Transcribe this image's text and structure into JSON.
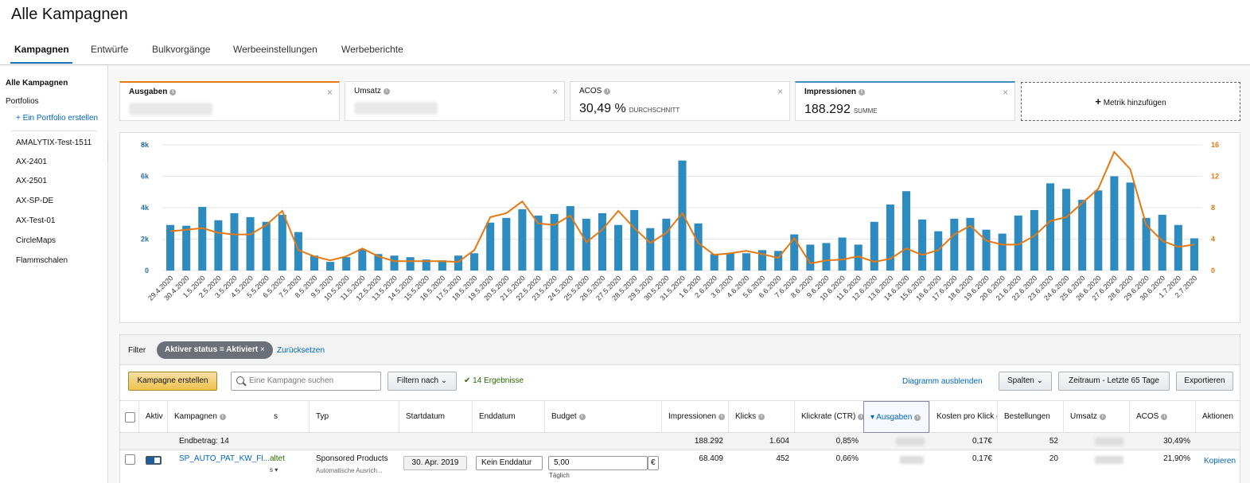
{
  "page_title": "Alle Kampagnen",
  "tabs": [
    "Kampagnen",
    "Entwürfe",
    "Bulkvorgänge",
    "Werbeeinstellungen",
    "Werbeberichte"
  ],
  "sidebar": {
    "heading": "Alle Kampagnen",
    "portfolios_label": "Portfolios",
    "create_portfolio": "+ Ein Portfolio erstellen",
    "items": [
      "AMALYTIX-Test-1511",
      "AX-2401",
      "AX-2501",
      "AX-SP-DE",
      "AX-Test-01",
      "CircleMaps",
      "Flammschalen"
    ]
  },
  "metrics": {
    "tile1_label": "Ausgaben",
    "tile2_label": "Umsatz",
    "tile3_label": "ACOS",
    "tile3_value": "30,49 %",
    "tile3_sub": "DURCHSCHNITT",
    "tile4_label": "Impressionen",
    "tile4_value": "188.292",
    "tile4_sub": "SUMME",
    "add_metric": "Metrik hinzufügen"
  },
  "colors": {
    "bars": "#2e8bc0",
    "line": "#e47911",
    "accent_blue": "#146eb4"
  },
  "chart_data": {
    "type": "bar",
    "categories": [
      "29.4.2020",
      "30.4.2020",
      "1.5.2020",
      "2.5.2020",
      "3.5.2020",
      "4.5.2020",
      "5.5.2020",
      "6.5.2020",
      "7.5.2020",
      "8.5.2020",
      "9.5.2020",
      "10.5.2020",
      "11.5.2020",
      "12.5.2020",
      "13.5.2020",
      "14.5.2020",
      "15.5.2020",
      "16.5.2020",
      "17.5.2020",
      "18.5.2020",
      "19.5.2020",
      "20.5.2020",
      "21.5.2020",
      "22.5.2020",
      "23.5.2020",
      "24.5.2020",
      "25.5.2020",
      "26.5.2020",
      "27.5.2020",
      "28.5.2020",
      "29.5.2020",
      "30.5.2020",
      "31.5.2020",
      "1.6.2020",
      "2.6.2020",
      "3.6.2020",
      "4.6.2020",
      "5.6.2020",
      "6.6.2020",
      "7.6.2020",
      "8.6.2020",
      "9.6.2020",
      "10.6.2020",
      "11.6.2020",
      "12.6.2020",
      "13.6.2020",
      "14.6.2020",
      "15.6.2020",
      "16.6.2020",
      "17.6.2020",
      "18.6.2020",
      "19.6.2020",
      "20.6.2020",
      "21.6.2020",
      "22.6.2020",
      "23.6.2020",
      "24.6.2020",
      "25.6.2020",
      "26.6.2020",
      "27.6.2020",
      "28.6.2020",
      "29.6.2020",
      "30.6.2020",
      "1.7.2020",
      "2.7.2020"
    ],
    "series": [
      {
        "name": "Impressionen",
        "axis": "left",
        "type": "bar",
        "values": [
          2900,
          2850,
          4050,
          3200,
          3650,
          3400,
          3100,
          3550,
          2450,
          950,
          550,
          850,
          1350,
          1050,
          950,
          850,
          700,
          650,
          950,
          1100,
          3050,
          3350,
          3900,
          3500,
          3600,
          4100,
          3300,
          3650,
          2900,
          3850,
          2700,
          3300,
          7000,
          3000,
          1050,
          1100,
          1100,
          1300,
          1250,
          2300,
          1650,
          1750,
          2100,
          1650,
          3100,
          4200,
          5050,
          3250,
          2500,
          3300,
          3350,
          2600,
          2350,
          3500,
          3850,
          5550,
          5200,
          4500,
          5100,
          6000,
          5600,
          3350,
          3550,
          2900,
          2050
        ]
      },
      {
        "name": "ACOS",
        "axis": "right",
        "type": "line",
        "values": [
          5,
          5.2,
          5.4,
          4.8,
          4.6,
          4.6,
          5.8,
          7.6,
          2.6,
          1.8,
          1.3,
          1.8,
          2.8,
          1.8,
          1.2,
          1.2,
          1.2,
          1.2,
          1.1,
          2.6,
          6.8,
          7.3,
          8.8,
          6.0,
          5.8,
          7.0,
          3.6,
          5.2,
          7.6,
          5.4,
          3.5,
          4.8,
          7.3,
          3.5,
          2.0,
          2.2,
          2.5,
          2.1,
          1.6,
          4.1,
          0.9,
          1.3,
          1.4,
          1.8,
          1.1,
          1.5,
          2.8,
          2.0,
          2.6,
          4.6,
          5.7,
          3.8,
          3.3,
          3.3,
          4.4,
          6.3,
          6.8,
          8.6,
          10.4,
          15.1,
          12.9,
          5.8,
          3.8,
          3.0,
          3.3
        ]
      }
    ],
    "left_axis_ticks": [
      "0",
      "2k",
      "4k",
      "6k",
      "8k"
    ],
    "right_axis_ticks": [
      "0",
      "4",
      "8",
      "12",
      "16"
    ],
    "left_ylim": [
      0,
      8000
    ],
    "right_ylim": [
      0,
      16
    ],
    "grid": true
  },
  "filter": {
    "label": "Filter",
    "chip": "Aktiver status = Aktiviert",
    "reset": "Zurücksetzen"
  },
  "toolbar": {
    "create_campaign": "Kampagne erstellen",
    "search_placeholder": "Eine Kampagne suchen",
    "filter_by": "Filtern nach",
    "results": "14 Ergebnisse",
    "hide_chart": "Diagramm ausblenden",
    "columns": "Spalten",
    "date_range": "Zeitraum - Letzte 65 Tage",
    "export": "Exportieren"
  },
  "table": {
    "headers": [
      "Aktiv",
      "Kampagnen",
      "s",
      "Typ",
      "Startdatum",
      "Enddatum",
      "Budget",
      "Impressionen",
      "Klicks",
      "Klickrate (CTR)",
      "Ausgaben",
      "Kosten pro Klick (",
      "Bestellungen",
      "Umsatz",
      "ACOS",
      "Aktionen"
    ],
    "total": {
      "label": "Endbetrag: 14",
      "impressions": "188.292",
      "clicks": "1.604",
      "ctr": "0,85%",
      "cpc": "0,17€",
      "orders": "52",
      "acos": "30,49%"
    },
    "row1": {
      "name": "SP_AUTO_PAT_KW_Fl...",
      "status": "altet",
      "type": "Sponsored Products",
      "type_sub": "Automatische Ausrich...",
      "start": "30. Apr. 2019",
      "end": "Kein Enddatur",
      "budget": "5,00",
      "currency": "€",
      "budget_sub": "Täglich",
      "impressions": "68.409",
      "clicks": "452",
      "ctr": "0,66%",
      "cpc": "0,17€",
      "orders": "20",
      "acos": "21,90%",
      "action": "Kopieren"
    }
  }
}
